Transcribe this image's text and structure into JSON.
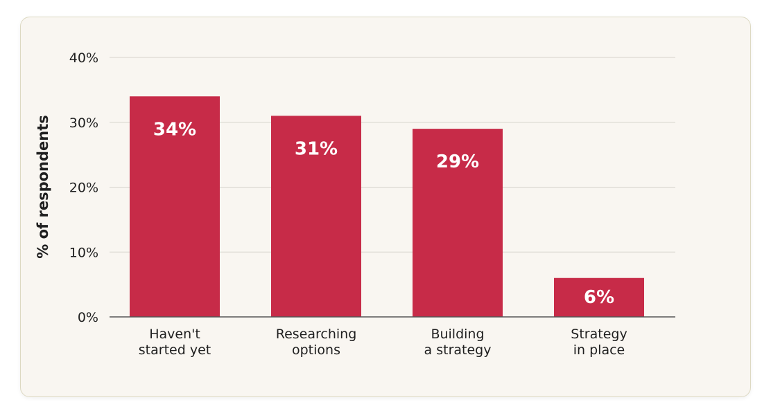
{
  "chart_data": {
    "type": "bar",
    "ylabel": "% of respondents",
    "ylim": [
      0,
      40
    ],
    "yticks": [
      0,
      10,
      20,
      30,
      40
    ],
    "ytick_labels": [
      "0%",
      "10%",
      "20%",
      "30%",
      "40%"
    ],
    "categories": [
      [
        "Haven't",
        "started yet"
      ],
      [
        "Researching",
        "options"
      ],
      [
        "Building",
        "a strategy"
      ],
      [
        "Strategy",
        "in place"
      ]
    ],
    "values": [
      34,
      31,
      29,
      6
    ],
    "value_labels": [
      "34%",
      "31%",
      "29%",
      "6%"
    ],
    "grid": true,
    "bar_color": "#c72b48",
    "grid_color": "#d6d3cc",
    "axis_color": "#555555"
  }
}
